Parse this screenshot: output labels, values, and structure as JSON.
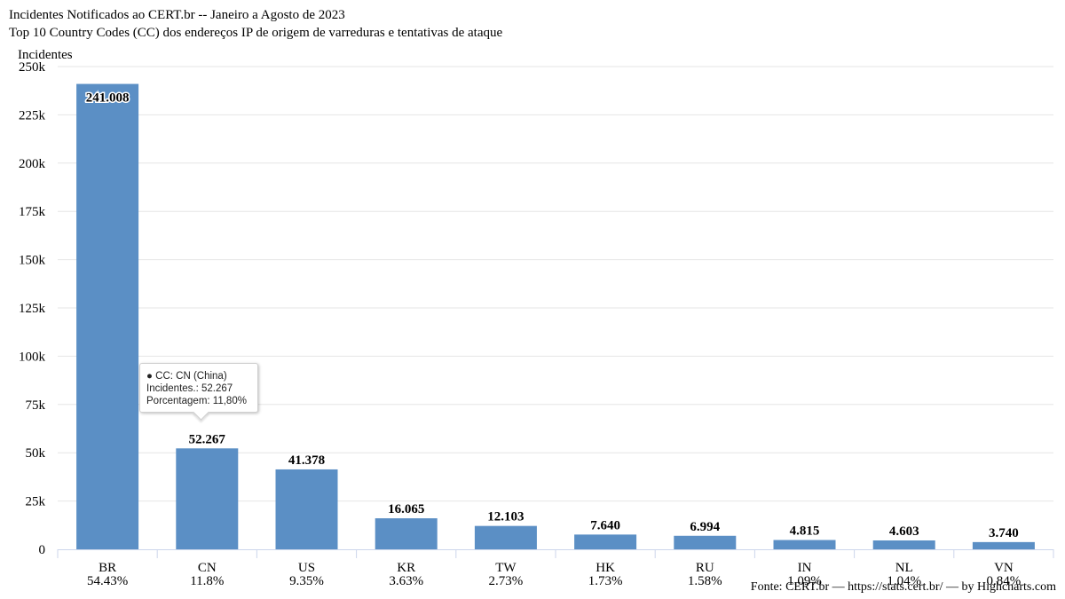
{
  "chart_data": {
    "type": "bar",
    "title": "Incidentes Notificados ao CERT.br -- Janeiro a Agosto de 2023",
    "subtitle": "Top 10 Country Codes (CC) dos endereços IP de origem de varreduras e tentativas de ataque",
    "ylabel": "Incidentes",
    "ylim": [
      0,
      250000
    ],
    "yticks": [
      "0",
      "25k",
      "50k",
      "75k",
      "100k",
      "125k",
      "150k",
      "175k",
      "200k",
      "225k",
      "250k"
    ],
    "grid": true,
    "color": "#5b8fc5",
    "categories": [
      "BR",
      "CN",
      "US",
      "KR",
      "TW",
      "HK",
      "RU",
      "IN",
      "NL",
      "VN"
    ],
    "percent_labels": [
      "54.43%",
      "11.8%",
      "9.35%",
      "3.63%",
      "2.73%",
      "1.73%",
      "1.58%",
      "1.09%",
      "1.04%",
      "0.84%"
    ],
    "values": [
      241008,
      52267,
      41378,
      16065,
      12103,
      7640,
      6994,
      4815,
      4603,
      3740
    ],
    "data_labels": [
      "241.008",
      "52.267",
      "41.378",
      "16.065",
      "12.103",
      "7.640",
      "6.994",
      "4.815",
      "4.603",
      "3.740"
    ]
  },
  "tooltip": {
    "line1": "● CC: CN (China)",
    "line2": "Incidentes.: 52.267",
    "line3": "Porcentagem: 11,80%"
  },
  "credits": "Fonte: CERT.br — https://stats.cert.br/ — by Highcharts.com"
}
